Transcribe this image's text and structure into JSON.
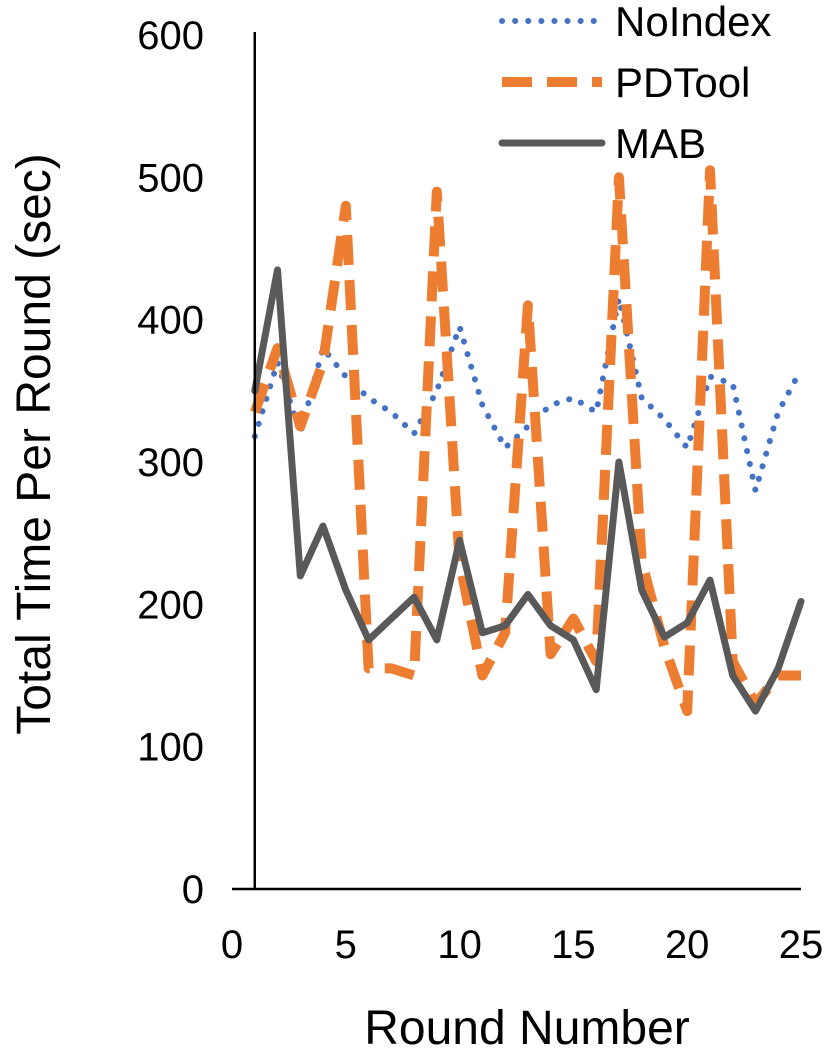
{
  "chart_data": {
    "type": "line",
    "title": "",
    "xlabel": "Round Number",
    "ylabel": "Total Time Per Round (sec)",
    "xlim": [
      0,
      25
    ],
    "ylim": [
      0,
      600
    ],
    "xticks": [
      0,
      5,
      10,
      15,
      20,
      25
    ],
    "yticks": [
      0,
      100,
      200,
      300,
      400,
      500,
      600
    ],
    "grid": false,
    "legend_position": "top-right",
    "x": [
      1,
      2,
      3,
      4,
      5,
      6,
      7,
      8,
      9,
      10,
      11,
      12,
      13,
      14,
      15,
      16,
      17,
      18,
      19,
      20,
      21,
      22,
      23,
      24,
      25
    ],
    "series": [
      {
        "name": "NoIndex",
        "style": "dotted",
        "color": "#4472C4",
        "values": [
          318,
          370,
          320,
          380,
          360,
          345,
          335,
          320,
          350,
          395,
          340,
          310,
          325,
          340,
          345,
          335,
          415,
          345,
          330,
          310,
          360,
          355,
          280,
          335,
          365
        ]
      },
      {
        "name": "PDTool",
        "style": "dashed",
        "color": "#ED7D31",
        "values": [
          335,
          380,
          325,
          370,
          480,
          155,
          155,
          150,
          490,
          230,
          150,
          180,
          410,
          165,
          190,
          160,
          500,
          230,
          170,
          125,
          505,
          160,
          130,
          150,
          150
        ]
      },
      {
        "name": "MAB",
        "style": "solid",
        "color": "#595959",
        "values": [
          350,
          435,
          220,
          255,
          210,
          175,
          190,
          205,
          175,
          245,
          180,
          185,
          207,
          185,
          175,
          140,
          300,
          210,
          177,
          187,
          217,
          150,
          125,
          155,
          202
        ]
      }
    ]
  }
}
